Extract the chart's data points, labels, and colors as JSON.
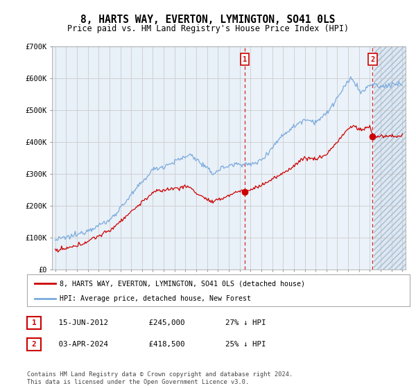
{
  "title": "8, HARTS WAY, EVERTON, LYMINGTON, SO41 0LS",
  "subtitle": "Price paid vs. HM Land Registry's House Price Index (HPI)",
  "ylim": [
    0,
    700000
  ],
  "background_color": "#e8f0f8",
  "fig_background": "#ffffff",
  "grid_color": "#cccccc",
  "red_line_color": "#cc0000",
  "blue_line_color": "#7aaadd",
  "dashed_line_color": "#cc0000",
  "hatch_bg": "#dde8f0",
  "marker1_date": 2012.46,
  "marker2_date": 2024.25,
  "legend_entry1": "8, HARTS WAY, EVERTON, LYMINGTON, SO41 0LS (detached house)",
  "legend_entry2": "HPI: Average price, detached house, New Forest",
  "table_row1": [
    "1",
    "15-JUN-2012",
    "£245,000",
    "27% ↓ HPI"
  ],
  "table_row2": [
    "2",
    "03-APR-2024",
    "£418,500",
    "25% ↓ HPI"
  ],
  "footnote": "Contains HM Land Registry data © Crown copyright and database right 2024.\nThis data is licensed under the Open Government Licence v3.0.",
  "title_fontsize": 10.5,
  "subtitle_fontsize": 8.5,
  "tick_fontsize": 7
}
